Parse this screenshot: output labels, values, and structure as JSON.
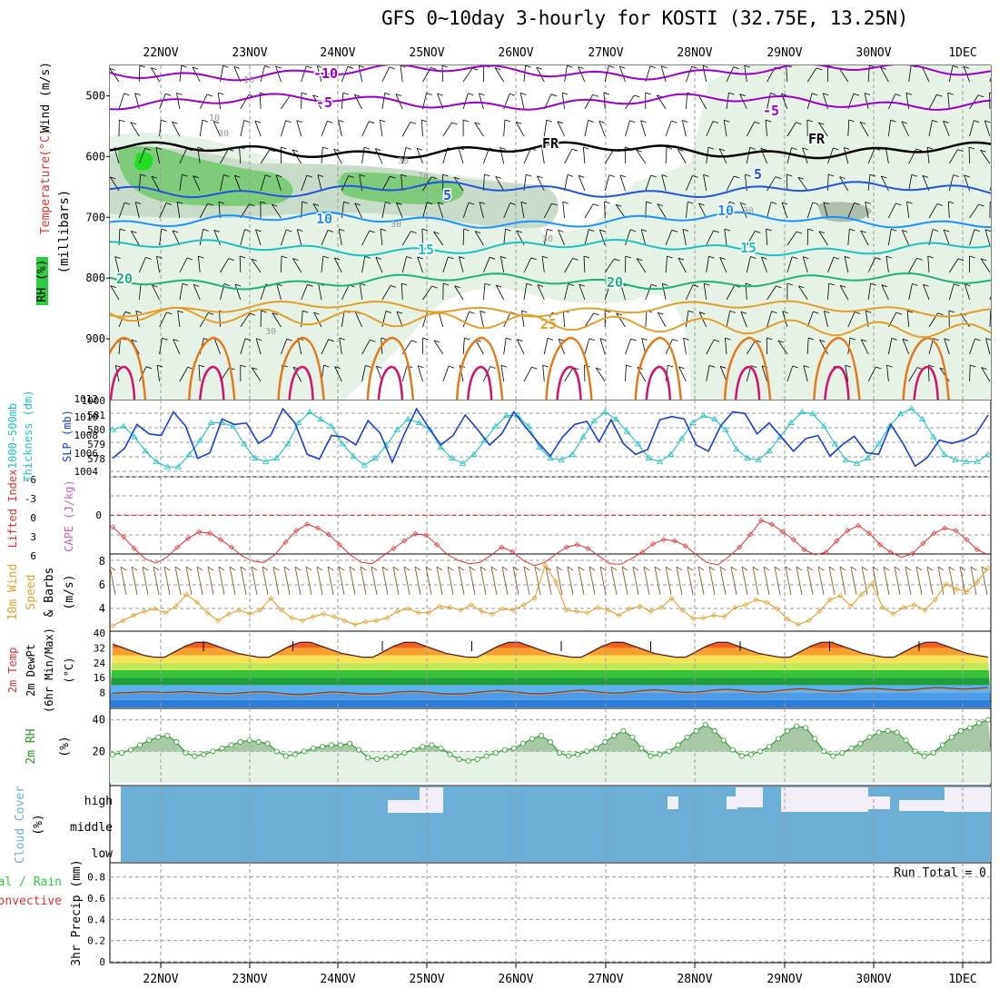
{
  "title": "GFS 0~10day 3-hourly for KOSTI (32.75E, 13.25N)",
  "chart_data": [
    {
      "id": "upper",
      "type": "contour",
      "ylabel_parts": [
        "RH (%)",
        "Temperature",
        "(°C)",
        "Wind",
        "(m/s)"
      ],
      "yunit": "(millibars)",
      "pressure_ticks": [
        "500",
        "600",
        "700",
        "800",
        "900"
      ],
      "ylim": [
        450,
        1000
      ],
      "x_dates": [
        "22NOV",
        "23NOV",
        "24NOV",
        "25NOV",
        "26NOV",
        "27NOV",
        "28NOV",
        "29NOV",
        "30NOV",
        "1DEC"
      ],
      "temperature_isotherms": [
        {
          "label": "-10",
          "level_mb": 462,
          "color": "#9900cc"
        },
        {
          "label": "-5",
          "level_mb": 510,
          "color": "#9900cc"
        },
        {
          "label": "FR",
          "level_mb": 590,
          "color": "#000000"
        },
        {
          "label": "5",
          "level_mb": 655,
          "color": "#2255dd"
        },
        {
          "label": "10",
          "level_mb": 705,
          "color": "#1e90ff"
        },
        {
          "label": "15",
          "level_mb": 750,
          "color": "#20c0c0"
        },
        {
          "label": "20",
          "level_mb": 805,
          "color": "#20b080"
        },
        {
          "label": "25",
          "level_mb": 850,
          "color": "#e0a030"
        }
      ],
      "contour_labels": [
        "-10",
        "-5",
        "-5",
        "FR",
        "FR",
        "5",
        "5",
        "10",
        "10",
        "15",
        "15",
        "20",
        "20",
        "25"
      ],
      "rh_labels": [
        "10",
        "10",
        "30",
        "30",
        "70",
        "30",
        "30",
        "30",
        "30"
      ]
    },
    {
      "id": "thickness_slp",
      "type": "line",
      "ylabel_left": [
        "1000-500mb",
        "Thickness (dm)"
      ],
      "ylabel_right": [
        "SLP (mb)"
      ],
      "left_ticks": [
        "581",
        "580",
        "579",
        "578"
      ],
      "right_ticks": [
        "1012",
        "1010",
        "1008",
        "1006",
        "1004"
      ],
      "series": [
        {
          "name": "Thickness",
          "color": "#20c0c0",
          "marker": "triangle",
          "ylim": [
            577.5,
            581.5
          ],
          "values": [
            580.0,
            580.2,
            579.6,
            578.8,
            578.2,
            577.9,
            577.9,
            578.6,
            579.4,
            580.4,
            580.4,
            580.2,
            579.2,
            578.4,
            578.2,
            578.4,
            579.2,
            580.4,
            581.0,
            580.6,
            580.2,
            579.2,
            578.5,
            578.0,
            578.4,
            579.1,
            580.0,
            580.6,
            580.4,
            580.0,
            579.0,
            578.4,
            578.1,
            578.6,
            579.4,
            580.2,
            580.8,
            580.8,
            580.2,
            579.0,
            578.4,
            578.3,
            578.6,
            579.6,
            580.5,
            581.0,
            580.6,
            579.9,
            579.2,
            578.4,
            578.2,
            578.6,
            579.5,
            580.4,
            580.8,
            580.6,
            580.0,
            578.9,
            578.4,
            578.3,
            578.8,
            579.6,
            580.4,
            581.0,
            580.9,
            580.2,
            579.2,
            578.3,
            578.1,
            578.4,
            579.2,
            580.2,
            580.9,
            581.2,
            580.6,
            579.6,
            578.6,
            578.3,
            578.2,
            578.2,
            578.6
          ]
        },
        {
          "name": "SLP",
          "color": "#1a3fd6",
          "marker": "none",
          "ylim": [
            1003.5,
            1012.5
          ],
          "values": [
            1005.5,
            1006.8,
            1009.8,
            1008.6,
            1008.4,
            1011.4,
            1009.6,
            1005.5,
            1006.2,
            1010.5,
            1009.8,
            1010.0,
            1007.4,
            1008.4,
            1011.8,
            1010.0,
            1006.0,
            1005.4,
            1008.4,
            1008.2,
            1007.2,
            1010.3,
            1008.7,
            1005.0,
            1008.6,
            1011.8,
            1009.4,
            1007.2,
            1008.4,
            1011.0,
            1009.2,
            1007.2,
            1008.6,
            1011.4,
            1009.4,
            1007.5,
            1005.8,
            1008.2,
            1009.8,
            1010.2,
            1007.6,
            1010.4,
            1007.4,
            1006.0,
            1006.6,
            1010.4,
            1010.8,
            1010.5,
            1007.2,
            1006.4,
            1009.6,
            1011.4,
            1011.2,
            1008.6,
            1010.0,
            1008.2,
            1006.4,
            1008.0,
            1008.4,
            1005.8,
            1007.2,
            1008.3,
            1006.2,
            1006.0,
            1009.8,
            1007.4,
            1004.5,
            1005.6,
            1007.8,
            1007.4,
            1007.8,
            1008.6,
            1011.0
          ]
        }
      ]
    },
    {
      "id": "lifted_cape",
      "type": "line",
      "ylabel_left": [
        "Lifted Index"
      ],
      "ylabel_right": [
        "CAPE (J/kg)"
      ],
      "left_ticks": [
        "-6",
        "-3",
        "0",
        "3",
        "6"
      ],
      "right_ticks": [
        "0"
      ],
      "ylim": [
        -6,
        6
      ],
      "series": [
        {
          "name": "Lifted Index",
          "color": "#e03030",
          "marker": "diamond",
          "values": [
            1.8,
            3.4,
            5.2,
            6.8,
            7.5,
            6.6,
            5.0,
            3.6,
            2.6,
            2.8,
            3.8,
            5.0,
            6.4,
            7.2,
            7.4,
            6.2,
            4.2,
            2.4,
            1.4,
            2.0,
            3.0,
            4.6,
            6.2,
            7.4,
            7.6,
            6.4,
            5.2,
            4.0,
            2.9,
            3.1,
            4.6,
            6.2,
            7.1,
            7.6,
            7.4,
            6.3,
            5.0,
            5.7,
            7.1,
            7.9,
            7.4,
            6.1,
            5.0,
            4.6,
            5.2,
            6.4,
            7.6,
            7.7,
            6.8,
            5.8,
            4.5,
            3.8,
            4.0,
            4.8,
            6.2,
            7.4,
            7.8,
            6.5,
            5.0,
            3.0,
            0.8,
            1.4,
            2.6,
            3.8,
            5.4,
            6.2,
            5.8,
            4.0,
            2.4,
            1.6,
            2.8,
            4.6,
            5.8,
            6.6,
            6.0,
            4.4,
            2.8,
            2.0,
            2.4,
            3.8,
            5.4,
            6.2
          ]
        }
      ]
    },
    {
      "id": "wind10m",
      "type": "line",
      "ylabel_left": [
        "10m Wind",
        "Speed",
        "& Barbs",
        "(m/s)"
      ],
      "left_ticks": [
        "8",
        "6",
        "4"
      ],
      "ylim": [
        3,
        8.2
      ],
      "series": [
        {
          "name": "10m Wind Speed",
          "color": "#e0a030",
          "marker": "diamond",
          "values": [
            3.2,
            3.6,
            4.0,
            4.3,
            4.5,
            4.2,
            4.7,
            5.6,
            5.0,
            4.2,
            3.6,
            4.1,
            4.4,
            4.1,
            4.4,
            5.3,
            4.4,
            3.8,
            3.6,
            3.9,
            4.1,
            3.9,
            3.6,
            3.3,
            3.5,
            3.6,
            3.8,
            4.3,
            4.5,
            4.2,
            4.2,
            4.7,
            4.6,
            4.4,
            4.8,
            4.3,
            4.1,
            4.5,
            4.4,
            4.8,
            5.3,
            7.8,
            6.6,
            4.4,
            4.3,
            4.2,
            4.6,
            4.4,
            4.0,
            4.5,
            4.7,
            4.3,
            4.6,
            5.3,
            4.4,
            3.8,
            3.8,
            4.0,
            3.9,
            4.6,
            4.8,
            5.2,
            5.0,
            4.5,
            3.7,
            3.3,
            3.6,
            4.3,
            5.2,
            5.5,
            4.7,
            5.6,
            6.4,
            4.6,
            4.1,
            4.6,
            4.8,
            4.4,
            5.2,
            6.4,
            6.0,
            5.8,
            6.6,
            7.6
          ]
        }
      ]
    },
    {
      "id": "temperature",
      "type": "area",
      "ylabel_left": [
        "2m Temp",
        "2m DewPt",
        "(6hr Min/Max)",
        "(°C)"
      ],
      "left_ticks": [
        "40",
        "32",
        "24",
        "16",
        "8"
      ],
      "ylim": [
        0,
        40
      ],
      "series": [
        {
          "name": "2m Temp",
          "color": "#7a0000",
          "values": [
            34,
            32,
            30,
            28,
            27,
            27,
            30,
            33,
            35,
            35,
            33,
            31,
            29,
            28,
            27,
            27,
            30,
            33,
            35,
            35,
            33,
            31,
            29,
            28,
            27,
            27,
            30,
            33,
            35,
            35,
            33,
            31,
            29,
            28,
            27,
            27,
            30,
            33,
            35,
            35,
            33,
            31,
            29,
            28,
            27,
            27,
            30,
            33,
            35,
            35,
            33,
            31,
            29,
            28,
            27,
            27,
            30,
            33,
            35,
            35,
            33,
            31,
            29,
            28,
            27,
            27,
            30,
            33,
            35,
            35,
            33,
            31,
            29,
            28,
            27,
            27,
            30,
            33,
            35,
            35,
            33,
            31,
            29,
            28,
            27
          ]
        },
        {
          "name": "2m DewPt",
          "color": "#555555",
          "values": [
            7.5,
            7.8,
            8.0,
            8.4,
            8.2,
            7.9,
            8.2,
            8.5,
            8.0,
            7.8,
            7.4,
            7.2,
            7.6,
            8.0,
            8.4,
            8.2,
            7.6,
            7.0,
            6.8,
            7.2,
            7.8,
            8.2,
            8.0,
            7.6,
            7.2,
            7.0,
            7.4,
            8.0,
            8.4,
            8.6,
            8.2,
            7.6,
            7.2,
            7.0,
            7.4,
            8.0,
            8.6,
            9.0,
            8.6,
            8.0,
            7.4,
            7.2,
            7.6,
            8.2,
            8.8,
            9.2,
            8.6,
            8.0,
            7.6,
            7.8,
            8.4,
            9.0,
            9.4,
            9.0,
            8.4,
            8.0,
            8.2,
            8.8,
            9.4,
            9.6,
            9.2,
            8.6,
            8.2,
            8.4,
            9.0,
            9.6,
            10.0,
            9.6,
            9.0,
            8.6,
            8.8,
            9.4,
            10.0,
            10.2,
            9.8,
            9.4,
            9.2,
            9.6,
            10.2,
            10.6,
            10.4,
            10.0,
            9.8,
            10.2,
            10.6
          ]
        }
      ]
    },
    {
      "id": "rh2m",
      "type": "area",
      "ylabel_left": [
        "2m RH",
        "(%)"
      ],
      "left_ticks": [
        "40",
        "20"
      ],
      "ylim": [
        0,
        40
      ],
      "series": [
        {
          "name": "2m RH",
          "color": "#2a9a2a",
          "marker": "circle",
          "values": [
            18,
            19,
            21,
            24,
            27,
            29,
            30,
            26,
            19,
            17,
            18,
            20,
            22,
            24,
            26,
            27,
            26,
            25,
            20,
            17,
            18,
            20,
            22,
            23,
            24,
            24,
            25,
            21,
            16,
            15,
            16,
            17,
            19,
            21,
            23,
            24,
            22,
            18,
            15,
            14,
            15,
            17,
            19,
            21,
            22,
            25,
            28,
            30,
            26,
            19,
            17,
            18,
            20,
            22,
            26,
            30,
            33,
            29,
            22,
            17,
            18,
            20,
            24,
            29,
            33,
            37,
            33,
            27,
            21,
            17,
            18,
            20,
            23,
            28,
            33,
            36,
            35,
            28,
            20,
            17,
            19,
            22,
            25,
            29,
            32,
            33,
            32,
            27,
            20,
            17,
            19,
            24,
            29,
            33,
            35,
            38,
            40
          ]
        }
      ]
    },
    {
      "id": "cloud",
      "type": "bar",
      "ylabel_left": [
        "Cloud Cover",
        "(%)"
      ],
      "left_ticks": [
        "high",
        "middle",
        "low"
      ]
    },
    {
      "id": "precip",
      "type": "bar",
      "ylabel_left": [
        "3hr Precip (mm)"
      ],
      "ylabel_left2": [
        "Total / Rain",
        "Convective"
      ],
      "left_ticks": [
        "0.8",
        "0.6",
        "0.4",
        "0.2",
        "0"
      ],
      "ylim": [
        0,
        0.9
      ],
      "annotation": "Run Total = 0",
      "values": []
    }
  ],
  "colors": {
    "grid": "#9a9a9a",
    "rh_fill_light": "#e6f2e6",
    "rh_fill_mid": "#c7d8c7",
    "rh_fill_dark": "#60c060",
    "cloud": "#6baed6"
  }
}
